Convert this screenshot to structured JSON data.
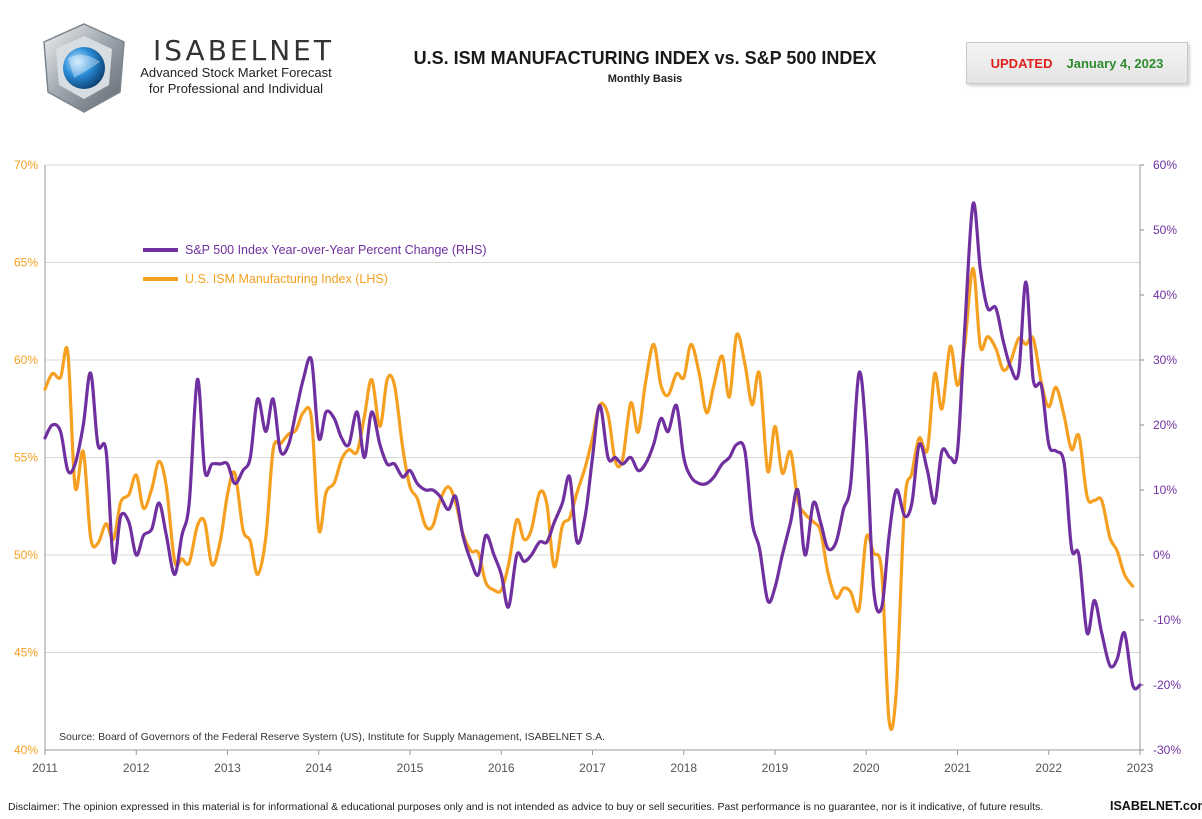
{
  "header": {
    "brand": "ISABELNET",
    "tagline_1": "Advanced Stock Market Forecast",
    "tagline_2": "for Professional and Individual",
    "updated_label": "UPDATED",
    "updated_date": "January 4, 2023"
  },
  "footer": {
    "disclaimer": "Disclaimer: The opinion expressed in this material is for informational & educational purposes only and is not intended as advice to buy or sell securities. Past performance is no guarantee, nor is it indicative, of future results.",
    "site": "ISABELNET.com"
  },
  "colors": {
    "sp500": "#7030a0",
    "ism": "#f5a021",
    "grid": "#d9d9d9"
  },
  "chart_data": {
    "type": "line",
    "title": "U.S. ISM MANUFACTURING INDEX vs. S&P 500 INDEX",
    "subtitle": "Monthly Basis",
    "source": "Source: Board of Governors of the Federal Reserve System (US), Institute for Supply Management, ISABELNET S.A.",
    "x_ticks": [
      "2011",
      "2012",
      "2013",
      "2014",
      "2015",
      "2016",
      "2017",
      "2018",
      "2019",
      "2020",
      "2021",
      "2022",
      "2023"
    ],
    "xlim": [
      2011,
      2023
    ],
    "y_left": {
      "lim": [
        40,
        70
      ],
      "ticks": [
        "40%",
        "45%",
        "50%",
        "55%",
        "60%",
        "65%",
        "70%"
      ]
    },
    "y_right": {
      "lim": [
        -30,
        60
      ],
      "ticks": [
        "-30%",
        "-20%",
        "-10%",
        "0%",
        "10%",
        "20%",
        "30%",
        "40%",
        "50%",
        "60%"
      ]
    },
    "grid": "horizontal",
    "legend_position": "top-left",
    "series": [
      {
        "name": "S&P 500 Index Year-over-Year Percent Change (RHS)",
        "axis": "right",
        "points": [
          [
            2011.0,
            18
          ],
          [
            2011.08,
            20
          ],
          [
            2011.17,
            19
          ],
          [
            2011.25,
            13
          ],
          [
            2011.33,
            14
          ],
          [
            2011.42,
            20
          ],
          [
            2011.5,
            28
          ],
          [
            2011.58,
            17
          ],
          [
            2011.67,
            16
          ],
          [
            2011.75,
            -1
          ],
          [
            2011.83,
            6
          ],
          [
            2011.92,
            5
          ],
          [
            2012.0,
            0
          ],
          [
            2012.08,
            3
          ],
          [
            2012.17,
            4
          ],
          [
            2012.25,
            8
          ],
          [
            2012.33,
            3
          ],
          [
            2012.42,
            -3
          ],
          [
            2012.5,
            3
          ],
          [
            2012.58,
            8
          ],
          [
            2012.67,
            27
          ],
          [
            2012.75,
            13
          ],
          [
            2012.83,
            14
          ],
          [
            2012.92,
            14
          ],
          [
            2013.0,
            14
          ],
          [
            2013.08,
            11
          ],
          [
            2013.17,
            13
          ],
          [
            2013.25,
            15
          ],
          [
            2013.33,
            24
          ],
          [
            2013.42,
            19
          ],
          [
            2013.5,
            24
          ],
          [
            2013.58,
            16
          ],
          [
            2013.67,
            17
          ],
          [
            2013.75,
            22
          ],
          [
            2013.83,
            27
          ],
          [
            2013.92,
            30
          ],
          [
            2014.0,
            18
          ],
          [
            2014.08,
            22
          ],
          [
            2014.17,
            21
          ],
          [
            2014.25,
            18
          ],
          [
            2014.33,
            17
          ],
          [
            2014.42,
            22
          ],
          [
            2014.5,
            15
          ],
          [
            2014.58,
            22
          ],
          [
            2014.67,
            17
          ],
          [
            2014.75,
            14
          ],
          [
            2014.83,
            14
          ],
          [
            2014.92,
            12
          ],
          [
            2015.0,
            13
          ],
          [
            2015.08,
            11
          ],
          [
            2015.17,
            10
          ],
          [
            2015.25,
            10
          ],
          [
            2015.33,
            9
          ],
          [
            2015.42,
            7
          ],
          [
            2015.5,
            9
          ],
          [
            2015.58,
            3
          ],
          [
            2015.67,
            -1
          ],
          [
            2015.75,
            -3
          ],
          [
            2015.83,
            3
          ],
          [
            2015.92,
            0
          ],
          [
            2016.0,
            -3
          ],
          [
            2016.08,
            -8
          ],
          [
            2016.17,
            0
          ],
          [
            2016.25,
            -1
          ],
          [
            2016.33,
            0
          ],
          [
            2016.42,
            2
          ],
          [
            2016.5,
            2
          ],
          [
            2016.58,
            5
          ],
          [
            2016.67,
            8
          ],
          [
            2016.75,
            12
          ],
          [
            2016.83,
            2
          ],
          [
            2016.92,
            6
          ],
          [
            2017.0,
            15
          ],
          [
            2017.08,
            23
          ],
          [
            2017.17,
            15
          ],
          [
            2017.25,
            15
          ],
          [
            2017.33,
            14
          ],
          [
            2017.42,
            15
          ],
          [
            2017.5,
            13
          ],
          [
            2017.58,
            14
          ],
          [
            2017.67,
            17
          ],
          [
            2017.75,
            21
          ],
          [
            2017.83,
            19
          ],
          [
            2017.92,
            23
          ],
          [
            2018.0,
            15
          ],
          [
            2018.08,
            12
          ],
          [
            2018.17,
            11
          ],
          [
            2018.25,
            11
          ],
          [
            2018.33,
            12
          ],
          [
            2018.42,
            14
          ],
          [
            2018.5,
            15
          ],
          [
            2018.58,
            17
          ],
          [
            2018.67,
            16
          ],
          [
            2018.75,
            5
          ],
          [
            2018.83,
            1
          ],
          [
            2018.92,
            -7
          ],
          [
            2019.0,
            -5
          ],
          [
            2019.08,
            0
          ],
          [
            2019.17,
            5
          ],
          [
            2019.25,
            10
          ],
          [
            2019.33,
            0
          ],
          [
            2019.42,
            8
          ],
          [
            2019.5,
            5
          ],
          [
            2019.58,
            1
          ],
          [
            2019.67,
            2
          ],
          [
            2019.75,
            7
          ],
          [
            2019.83,
            11
          ],
          [
            2019.92,
            28
          ],
          [
            2020.0,
            18
          ],
          [
            2020.08,
            -5
          ],
          [
            2020.17,
            -8
          ],
          [
            2020.25,
            3
          ],
          [
            2020.33,
            10
          ],
          [
            2020.42,
            6
          ],
          [
            2020.5,
            8
          ],
          [
            2020.58,
            17
          ],
          [
            2020.67,
            13
          ],
          [
            2020.75,
            8
          ],
          [
            2020.83,
            16
          ],
          [
            2020.92,
            15
          ],
          [
            2021.0,
            16
          ],
          [
            2021.08,
            35
          ],
          [
            2021.17,
            54
          ],
          [
            2021.25,
            44
          ],
          [
            2021.33,
            38
          ],
          [
            2021.42,
            38
          ],
          [
            2021.5,
            33
          ],
          [
            2021.58,
            29
          ],
          [
            2021.67,
            28
          ],
          [
            2021.75,
            42
          ],
          [
            2021.83,
            27
          ],
          [
            2021.92,
            26
          ],
          [
            2022.0,
            17
          ],
          [
            2022.08,
            16
          ],
          [
            2022.17,
            14
          ],
          [
            2022.25,
            1
          ],
          [
            2022.33,
            0
          ],
          [
            2022.42,
            -12
          ],
          [
            2022.5,
            -7
          ],
          [
            2022.58,
            -12
          ],
          [
            2022.67,
            -17
          ],
          [
            2022.75,
            -16
          ],
          [
            2022.83,
            -12
          ],
          [
            2022.92,
            -20
          ],
          [
            2023.0,
            -20
          ]
        ]
      },
      {
        "name": "U.S. ISM Manufacturing Index (LHS)",
        "axis": "left",
        "points": [
          [
            2011.0,
            58.5
          ],
          [
            2011.08,
            59.3
          ],
          [
            2011.17,
            59.1
          ],
          [
            2011.25,
            60.4
          ],
          [
            2011.33,
            53.5
          ],
          [
            2011.42,
            55.3
          ],
          [
            2011.5,
            50.9
          ],
          [
            2011.58,
            50.6
          ],
          [
            2011.67,
            51.6
          ],
          [
            2011.75,
            50.8
          ],
          [
            2011.83,
            52.7
          ],
          [
            2011.92,
            53.1
          ],
          [
            2012.0,
            54.1
          ],
          [
            2012.08,
            52.4
          ],
          [
            2012.17,
            53.4
          ],
          [
            2012.25,
            54.8
          ],
          [
            2012.33,
            53.5
          ],
          [
            2012.42,
            49.7
          ],
          [
            2012.5,
            49.8
          ],
          [
            2012.58,
            49.6
          ],
          [
            2012.67,
            51.5
          ],
          [
            2012.75,
            51.7
          ],
          [
            2012.83,
            49.5
          ],
          [
            2012.92,
            50.7
          ],
          [
            2013.0,
            53.1
          ],
          [
            2013.08,
            54.2
          ],
          [
            2013.17,
            51.3
          ],
          [
            2013.25,
            50.7
          ],
          [
            2013.33,
            49.0
          ],
          [
            2013.42,
            50.9
          ],
          [
            2013.5,
            55.4
          ],
          [
            2013.58,
            55.7
          ],
          [
            2013.67,
            56.2
          ],
          [
            2013.75,
            56.4
          ],
          [
            2013.83,
            57.3
          ],
          [
            2013.92,
            57.0
          ],
          [
            2014.0,
            51.3
          ],
          [
            2014.08,
            53.2
          ],
          [
            2014.17,
            53.7
          ],
          [
            2014.25,
            54.9
          ],
          [
            2014.33,
            55.4
          ],
          [
            2014.42,
            55.3
          ],
          [
            2014.5,
            57.1
          ],
          [
            2014.58,
            59.0
          ],
          [
            2014.67,
            56.6
          ],
          [
            2014.75,
            59.0
          ],
          [
            2014.83,
            58.7
          ],
          [
            2014.92,
            55.5
          ],
          [
            2015.0,
            53.5
          ],
          [
            2015.08,
            52.9
          ],
          [
            2015.17,
            51.5
          ],
          [
            2015.25,
            51.5
          ],
          [
            2015.33,
            52.8
          ],
          [
            2015.42,
            53.5
          ],
          [
            2015.5,
            52.7
          ],
          [
            2015.58,
            51.1
          ],
          [
            2015.67,
            50.2
          ],
          [
            2015.75,
            50.1
          ],
          [
            2015.83,
            48.6
          ],
          [
            2015.92,
            48.2
          ],
          [
            2016.0,
            48.2
          ],
          [
            2016.08,
            49.5
          ],
          [
            2016.17,
            51.8
          ],
          [
            2016.25,
            50.8
          ],
          [
            2016.33,
            51.3
          ],
          [
            2016.42,
            53.2
          ],
          [
            2016.5,
            52.6
          ],
          [
            2016.58,
            49.4
          ],
          [
            2016.67,
            51.5
          ],
          [
            2016.75,
            51.9
          ],
          [
            2016.83,
            53.2
          ],
          [
            2016.92,
            54.5
          ],
          [
            2017.0,
            56.0
          ],
          [
            2017.08,
            57.7
          ],
          [
            2017.17,
            57.2
          ],
          [
            2017.25,
            54.8
          ],
          [
            2017.33,
            54.9
          ],
          [
            2017.42,
            57.8
          ],
          [
            2017.5,
            56.3
          ],
          [
            2017.58,
            58.8
          ],
          [
            2017.67,
            60.8
          ],
          [
            2017.75,
            58.7
          ],
          [
            2017.83,
            58.2
          ],
          [
            2017.92,
            59.3
          ],
          [
            2018.0,
            59.1
          ],
          [
            2018.08,
            60.8
          ],
          [
            2018.17,
            59.3
          ],
          [
            2018.25,
            57.3
          ],
          [
            2018.33,
            58.7
          ],
          [
            2018.42,
            60.2
          ],
          [
            2018.5,
            58.1
          ],
          [
            2018.58,
            61.3
          ],
          [
            2018.67,
            59.8
          ],
          [
            2018.75,
            57.7
          ],
          [
            2018.83,
            59.3
          ],
          [
            2018.92,
            54.3
          ],
          [
            2019.0,
            56.6
          ],
          [
            2019.08,
            54.2
          ],
          [
            2019.17,
            55.3
          ],
          [
            2019.25,
            52.8
          ],
          [
            2019.33,
            52.1
          ],
          [
            2019.42,
            51.7
          ],
          [
            2019.5,
            51.2
          ],
          [
            2019.58,
            49.1
          ],
          [
            2019.67,
            47.8
          ],
          [
            2019.75,
            48.3
          ],
          [
            2019.83,
            48.1
          ],
          [
            2019.92,
            47.2
          ],
          [
            2020.0,
            50.9
          ],
          [
            2020.08,
            50.1
          ],
          [
            2020.17,
            49.1
          ],
          [
            2020.25,
            41.5
          ],
          [
            2020.33,
            43.1
          ],
          [
            2020.42,
            52.6
          ],
          [
            2020.5,
            54.2
          ],
          [
            2020.58,
            56.0
          ],
          [
            2020.67,
            55.4
          ],
          [
            2020.75,
            59.3
          ],
          [
            2020.83,
            57.5
          ],
          [
            2020.92,
            60.7
          ],
          [
            2021.0,
            58.7
          ],
          [
            2021.08,
            60.8
          ],
          [
            2021.17,
            64.7
          ],
          [
            2021.25,
            60.7
          ],
          [
            2021.33,
            61.2
          ],
          [
            2021.42,
            60.6
          ],
          [
            2021.5,
            59.5
          ],
          [
            2021.58,
            59.9
          ],
          [
            2021.67,
            61.1
          ],
          [
            2021.75,
            60.8
          ],
          [
            2021.83,
            61.1
          ],
          [
            2021.92,
            58.8
          ],
          [
            2022.0,
            57.6
          ],
          [
            2022.08,
            58.6
          ],
          [
            2022.17,
            57.1
          ],
          [
            2022.25,
            55.4
          ],
          [
            2022.33,
            56.1
          ],
          [
            2022.42,
            53.0
          ],
          [
            2022.5,
            52.8
          ],
          [
            2022.58,
            52.8
          ],
          [
            2022.67,
            50.9
          ],
          [
            2022.75,
            50.2
          ],
          [
            2022.83,
            49.0
          ],
          [
            2022.92,
            48.4
          ]
        ]
      }
    ]
  }
}
